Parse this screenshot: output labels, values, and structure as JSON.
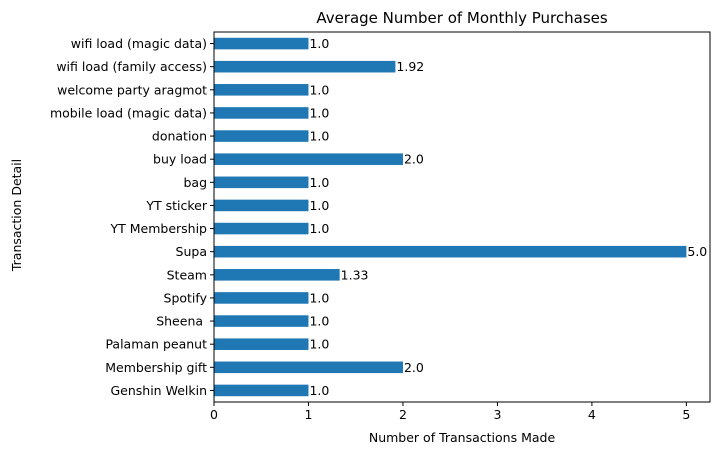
{
  "chart_data": {
    "type": "bar",
    "orientation": "horizontal",
    "title": "Average Number of Monthly Purchases",
    "xlabel": "Number of Transactions Made",
    "ylabel": "Transaction Detail",
    "xlim": [
      0,
      5.25
    ],
    "xticks": [
      "0",
      "1",
      "2",
      "3",
      "4",
      "5"
    ],
    "bar_color": "#1f77b4",
    "grid": false,
    "categories": [
      "Genshin Welkin",
      "Membership gift",
      "Palaman peanut",
      "Sheena ",
      "Spotify",
      "Steam",
      "Supa",
      "YT Membership",
      "YT sticker",
      "bag",
      "buy load",
      "donation",
      "mobile load (magic data)",
      "welcome party aragmot",
      "wifi load (family access)",
      "wifi load (magic data)"
    ],
    "values": [
      1.0,
      2.0,
      1.0,
      1.0,
      1.0,
      1.33,
      5.0,
      1.0,
      1.0,
      1.0,
      2.0,
      1.0,
      1.0,
      1.0,
      1.92,
      1.0
    ],
    "value_labels": [
      "1.0",
      "2.0",
      "1.0",
      "1.0",
      "1.0",
      "1.33",
      "5.0",
      "1.0",
      "1.0",
      "1.0",
      "2.0",
      "1.0",
      "1.0",
      "1.0",
      "1.92",
      "1.0"
    ]
  }
}
